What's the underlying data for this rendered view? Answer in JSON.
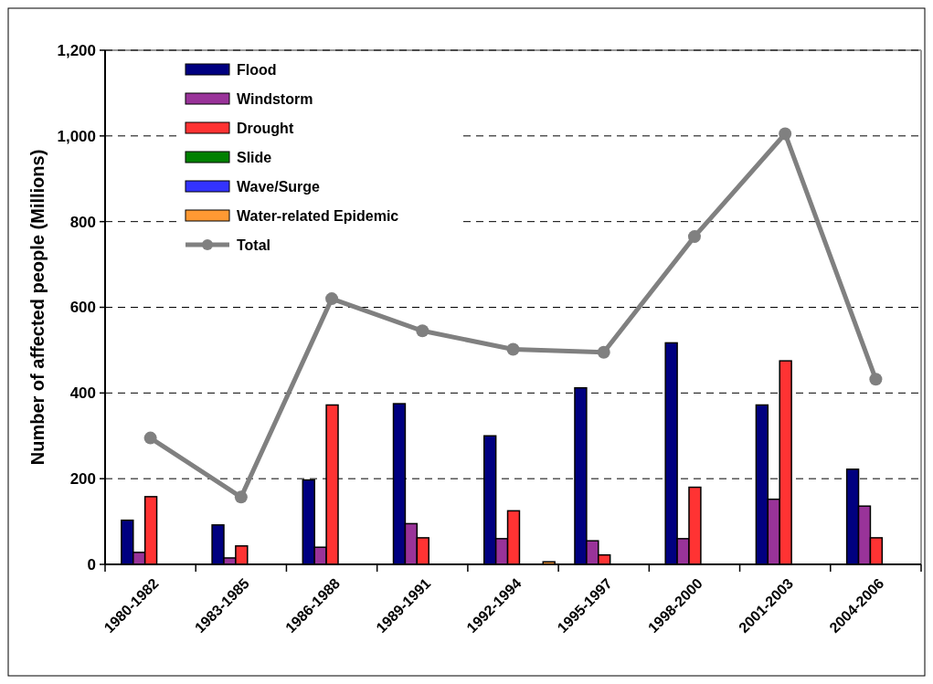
{
  "chart_data": {
    "type": "bar",
    "ylabel": "Number of affected people (Millions)",
    "categories": [
      "1980-1982",
      "1983-1985",
      "1986-1988",
      "1989-1991",
      "1992-1994",
      "1995-1997",
      "1998-2000",
      "2001-2003",
      "2004-2006"
    ],
    "series": [
      {
        "name": "Flood",
        "color": "#000080",
        "values": [
          103,
          92,
          197,
          375,
          300,
          412,
          517,
          372,
          222
        ]
      },
      {
        "name": "Windstorm",
        "color": "#993399",
        "values": [
          28,
          15,
          40,
          95,
          60,
          55,
          60,
          152,
          136
        ]
      },
      {
        "name": "Drought",
        "color": "#ff3333",
        "values": [
          158,
          43,
          372,
          62,
          125,
          22,
          180,
          475,
          62
        ]
      },
      {
        "name": "Slide",
        "color": "#008000",
        "values": [
          0,
          0,
          0,
          0,
          0,
          0,
          0,
          0,
          0
        ]
      },
      {
        "name": "Wave/Surge",
        "color": "#3333ff",
        "values": [
          0,
          0,
          0,
          0,
          0,
          0,
          0,
          0,
          0
        ]
      },
      {
        "name": "Water-related Epidemic",
        "color": "#ff9933",
        "values": [
          0,
          0,
          0,
          0,
          6,
          0,
          0,
          0,
          0
        ]
      },
      {
        "name": "Total",
        "type": "line",
        "color": "#808080",
        "marker": "circle",
        "values": [
          295,
          157,
          620,
          545,
          502,
          495,
          765,
          1005,
          432
        ]
      }
    ],
    "ylim": [
      0,
      1200
    ],
    "yticks": [
      0,
      {
        "value": 200,
        "label": "200"
      },
      {
        "value": 400,
        "label": "400"
      },
      {
        "value": 600,
        "label": "600"
      },
      {
        "value": 800,
        "label": "800"
      },
      {
        "value": 1000,
        "label": "1,000"
      },
      {
        "value": 1200,
        "label": "1,200"
      }
    ],
    "grid": "y",
    "legend": "top left"
  }
}
